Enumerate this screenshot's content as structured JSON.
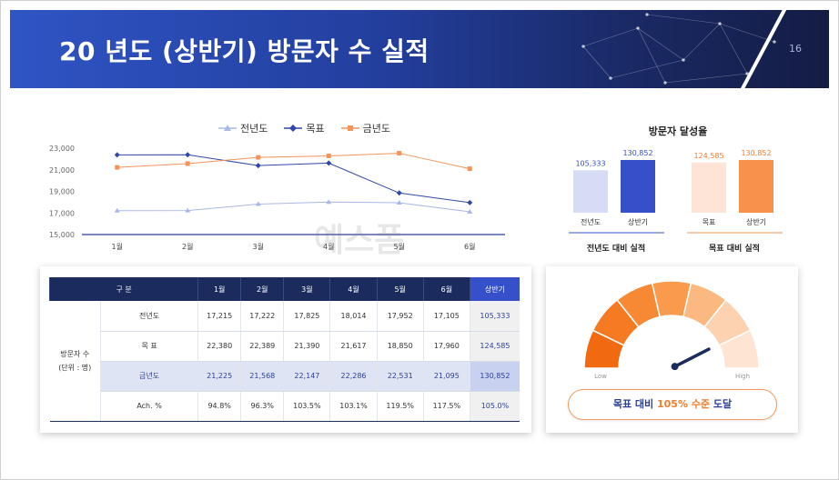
{
  "header": {
    "title": "20  년도 (상반기) 방문자 수 실적",
    "page_number": "16"
  },
  "line_chart": {
    "legend": [
      {
        "name": "전년도",
        "color": "#a9b8e8"
      },
      {
        "name": "목표",
        "color": "#2f48a8"
      },
      {
        "name": "금년도",
        "color": "#f5945a"
      }
    ]
  },
  "chart_data": [
    {
      "type": "line",
      "x": [
        "1월",
        "2월",
        "3월",
        "4월",
        "5월",
        "6월"
      ],
      "ylim": [
        15000,
        23000
      ],
      "yticks": [
        "15,000",
        "17,000",
        "19,000",
        "21,000",
        "23,000"
      ],
      "series": [
        {
          "name": "전년도",
          "values": [
            17215,
            17222,
            17825,
            18014,
            17952,
            17105
          ],
          "color": "#a9b8e8"
        },
        {
          "name": "목표",
          "values": [
            22380,
            22389,
            21390,
            21617,
            18850,
            17960
          ],
          "color": "#2f48a8"
        },
        {
          "name": "금년도",
          "values": [
            21225,
            21568,
            22147,
            22286,
            22531,
            21095
          ],
          "color": "#f5945a"
        }
      ]
    },
    {
      "type": "bar",
      "title": "방문자 달성율",
      "groups": [
        {
          "caption": "전년도 대비 실적",
          "categories": [
            "전년도",
            "상반기"
          ],
          "values": [
            105333,
            130852
          ],
          "labels": [
            "105,333",
            "130,852"
          ],
          "colors": [
            "#d5dcf4",
            "#3550c8"
          ],
          "label_color": "#3550c8"
        },
        {
          "caption": "목표 대비 실적",
          "categories": [
            "목표",
            "상반기"
          ],
          "values": [
            124585,
            130852
          ],
          "labels": [
            "124,585",
            "130,852"
          ],
          "colors": [
            "#fde4d6",
            "#f7914c"
          ],
          "label_color": "#f07d2e"
        }
      ]
    }
  ],
  "table": {
    "header": [
      "구  분",
      "1월",
      "2월",
      "3월",
      "4월",
      "5월",
      "6월",
      "상반기"
    ],
    "group_label_line1": "방문자 수",
    "group_label_line2": "(단위 : 명)",
    "rows": [
      {
        "label": "전년도",
        "cells": [
          "17,215",
          "17,222",
          "17,825",
          "18,014",
          "17,952",
          "17,105"
        ],
        "total": "105,333"
      },
      {
        "label": "목  표",
        "cells": [
          "22,380",
          "22,389",
          "21,390",
          "21,617",
          "18,850",
          "17,960"
        ],
        "total": "124,585"
      },
      {
        "label": "금년도",
        "cells": [
          "21,225",
          "21,568",
          "22,147",
          "22,286",
          "22,531",
          "21,095"
        ],
        "total": "130,852"
      },
      {
        "label": "Ach. %",
        "cells": [
          "94.8%",
          "96.3%",
          "103.5%",
          "103.1%",
          "119.5%",
          "117.5%"
        ],
        "total": "105.0%"
      }
    ]
  },
  "gauge": {
    "low_label": "Low",
    "high_label": "High",
    "level": 0.85,
    "result_prefix": "목표 대비 ",
    "result_value": "105% 수준",
    "result_suffix": " 도달"
  }
}
